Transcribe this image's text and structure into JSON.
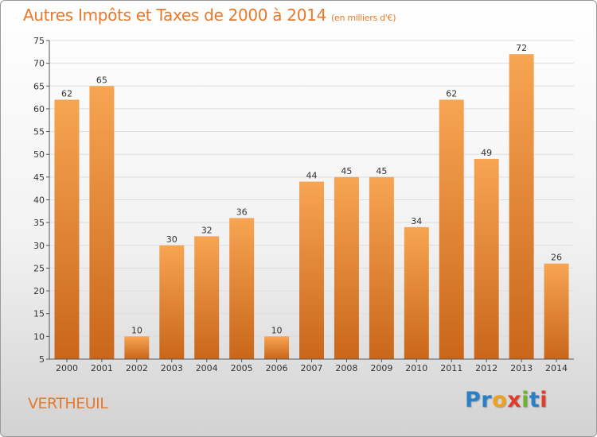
{
  "header": {
    "title": "Autres Impôts et Taxes de 2000 à 2014",
    "unit": "(en milliers d'€)"
  },
  "commune": "VERTHEUIL",
  "logo": {
    "text": "Proxiti",
    "letters": [
      {
        "ch": "P",
        "color": "#2a7fc9"
      },
      {
        "ch": "r",
        "color": "#2a7fc9"
      },
      {
        "ch": "o",
        "color": "#f0a11a"
      },
      {
        "ch": "x",
        "color": "#e23b2a"
      },
      {
        "ch": "i",
        "color": "#6cb52e"
      },
      {
        "ch": "t",
        "color": "#2a7fc9"
      },
      {
        "ch": "i",
        "color": "#e23b2a"
      }
    ]
  },
  "colors": {
    "title": "#e8792b",
    "bar_top": "#f7a552",
    "bar_bottom": "#c9661a",
    "grid": "#dddddd",
    "axis": "#555555"
  },
  "chart_data": {
    "type": "bar",
    "categories": [
      "2000",
      "2001",
      "2002",
      "2003",
      "2004",
      "2005",
      "2006",
      "2007",
      "2008",
      "2009",
      "2010",
      "2011",
      "2012",
      "2013",
      "2014"
    ],
    "values": [
      62,
      65,
      10,
      30,
      32,
      36,
      10,
      44,
      45,
      45,
      34,
      62,
      49,
      72,
      26
    ],
    "ylim": [
      5,
      75
    ],
    "yticks": [
      5,
      10,
      15,
      20,
      25,
      30,
      35,
      40,
      45,
      50,
      55,
      60,
      65,
      70,
      75
    ],
    "grid": true
  }
}
